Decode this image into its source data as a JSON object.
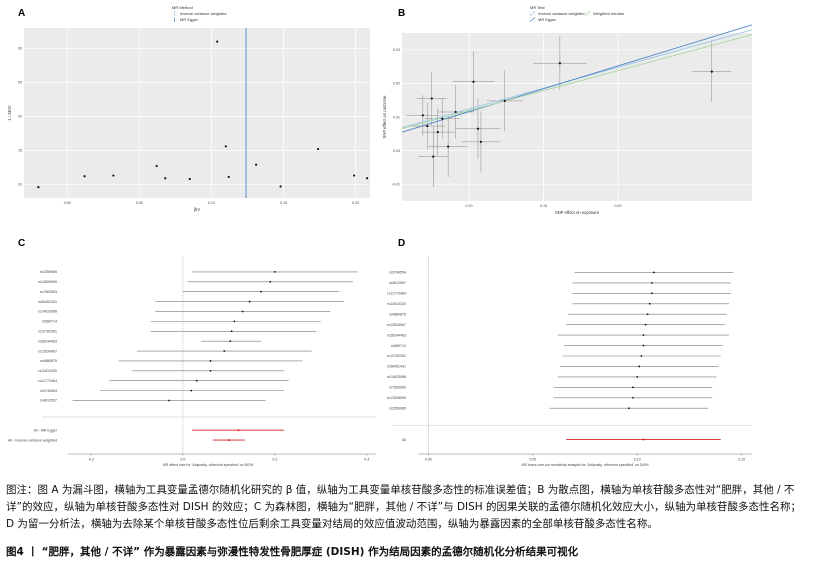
{
  "caption": {
    "note": "图注：图 A 为漏斗图，横轴为工具变量孟德尔随机化研究的 β 值，纵轴为工具变量单核苷酸多态性的标准误差值；B 为散点图，横轴为单核苷酸多态性对“肥胖，其他 / 不详”的效应，纵轴为单核苷酸多态性对 DISH 的效应；C 为森林图，横轴为“肥胖，其他 / 不详”与 DISH 的因果关联的孟德尔随机化效应大小，纵轴为单核苷酸多态性名称；D 为留一分析法，横轴为去除某个单核苷酸多态性位后剩余工具变量对结局的效应值波动范围，纵轴为暴露因素的全部单核苷酸多态性名称。",
    "title": "图4 丨 “肥胖，其他 / 不详” 作为暴露因素与弥漫性特发性骨肥厚症 (DISH) 作为结局因素的孟德尔随机化分析结果可视化"
  },
  "chart_data": [
    {
      "panel": "A",
      "type": "scatter",
      "legend_title": "MR Method",
      "legend_entries": [
        "Inverse variance weighted",
        "MR Egger"
      ],
      "legend_colors": [
        "#9fc8e8",
        "#4f86c6"
      ],
      "xlabel": "βIV",
      "ylabel": "1 / SEIV",
      "xlim": [
        -0.03,
        0.21
      ],
      "ylim": [
        8,
        33
      ],
      "x_ticks": [
        "0.00",
        "0.05",
        "0.10",
        "0.15",
        "0.20"
      ],
      "x_tick_values": [
        0.0,
        0.05,
        0.1,
        0.15,
        0.2
      ],
      "y_ticks": [
        "10",
        "15",
        "20",
        "25",
        "30"
      ],
      "y_tick_values": [
        10,
        15,
        20,
        25,
        30
      ],
      "vlines": [
        0.124,
        0.124
      ],
      "points": [
        {
          "x": -0.02,
          "y": 9.6
        },
        {
          "x": 0.012,
          "y": 11.2
        },
        {
          "x": 0.032,
          "y": 11.3
        },
        {
          "x": 0.062,
          "y": 12.7
        },
        {
          "x": 0.068,
          "y": 10.9
        },
        {
          "x": 0.085,
          "y": 10.8
        },
        {
          "x": 0.104,
          "y": 31.0
        },
        {
          "x": 0.11,
          "y": 15.6
        },
        {
          "x": 0.112,
          "y": 11.1
        },
        {
          "x": 0.131,
          "y": 12.9
        },
        {
          "x": 0.148,
          "y": 9.7
        },
        {
          "x": 0.174,
          "y": 15.2
        },
        {
          "x": 0.199,
          "y": 11.3
        },
        {
          "x": 0.208,
          "y": 10.9
        }
      ]
    },
    {
      "panel": "B",
      "type": "scatter",
      "legend_title": "MR Test",
      "legend_entries": [
        "Inverse variance weighted",
        "MR Egger",
        "Weighted median"
      ],
      "legend_colors": [
        "#9fc8e8",
        "#4f86c6",
        "#a8d5a2"
      ],
      "xlabel": "SNP effect on exposure",
      "ylabel": "SNP effect on outcome",
      "xlim": [
        0.055,
        0.29
      ],
      "ylim": [
        -0.015,
        0.035
      ],
      "x_ticks": [
        "0.10",
        "0.15",
        "0.20"
      ],
      "x_tick_values": [
        0.1,
        0.15,
        0.2
      ],
      "y_ticks": [
        "-0.01",
        "0.00",
        "0.01",
        "0.02",
        "0.03"
      ],
      "y_tick_values": [
        -0.01,
        0.0,
        0.01,
        0.02,
        0.03
      ],
      "lines": [
        {
          "name": "Inverse variance weighted",
          "intercept": 0.0,
          "slope": 0.124
        },
        {
          "name": "MR Egger",
          "intercept": -0.002,
          "slope": 0.136
        },
        {
          "name": "Weighted median",
          "intercept": 0.0,
          "slope": 0.119
        }
      ],
      "points": [
        {
          "x": 0.069,
          "y": 0.0105,
          "xerr": 0.011,
          "yerr": 0.006
        },
        {
          "x": 0.072,
          "y": 0.0073,
          "xerr": 0.012,
          "yerr": 0.007
        },
        {
          "x": 0.075,
          "y": 0.0155,
          "xerr": 0.01,
          "yerr": 0.008
        },
        {
          "x": 0.076,
          "y": -0.0018,
          "xerr": 0.01,
          "yerr": 0.009
        },
        {
          "x": 0.079,
          "y": 0.0055,
          "xerr": 0.011,
          "yerr": 0.007
        },
        {
          "x": 0.082,
          "y": 0.0095,
          "xerr": 0.012,
          "yerr": 0.006
        },
        {
          "x": 0.086,
          "y": 0.0012,
          "xerr": 0.013,
          "yerr": 0.009
        },
        {
          "x": 0.091,
          "y": 0.0115,
          "xerr": 0.012,
          "yerr": 0.008
        },
        {
          "x": 0.103,
          "y": 0.0205,
          "xerr": 0.014,
          "yerr": 0.009
        },
        {
          "x": 0.106,
          "y": 0.0065,
          "xerr": 0.015,
          "yerr": 0.009
        },
        {
          "x": 0.108,
          "y": 0.0026,
          "xerr": 0.013,
          "yerr": 0.009
        },
        {
          "x": 0.124,
          "y": 0.0148,
          "xerr": 0.012,
          "yerr": 0.009
        },
        {
          "x": 0.161,
          "y": 0.026,
          "xerr": 0.018,
          "yerr": 0.008
        },
        {
          "x": 0.263,
          "y": 0.0235,
          "xerr": 0.013,
          "yerr": 0.009
        }
      ]
    },
    {
      "panel": "C",
      "type": "forest",
      "xlabel": "MR effect size for 'Adiposity, other/not specified' on DISH",
      "x_ticks": [
        "-0.2",
        "0.0",
        "0.2",
        "0.4"
      ],
      "x_tick_values": [
        -0.2,
        0.0,
        0.2,
        0.4
      ],
      "xlim": [
        -0.25,
        0.42
      ],
      "rows": [
        {
          "label": "rs3359985",
          "est": 0.2,
          "lo": 0.02,
          "hi": 0.38
        },
        {
          "label": "rs12808999",
          "est": 0.19,
          "lo": 0.01,
          "hi": 0.37
        },
        {
          "label": "rs7563083",
          "est": 0.17,
          "lo": 0.0,
          "hi": 0.34
        },
        {
          "label": "rs56451431",
          "est": 0.145,
          "lo": -0.06,
          "hi": 0.35
        },
        {
          "label": "rs14633088",
          "est": 0.13,
          "lo": -0.06,
          "hi": 0.32
        },
        {
          "label": "rs589714",
          "est": 0.112,
          "lo": -0.07,
          "hi": 0.3
        },
        {
          "label": "rs12782281",
          "est": 0.106,
          "lo": -0.07,
          "hi": 0.29
        },
        {
          "label": "rs28244463",
          "est": 0.103,
          "lo": 0.04,
          "hi": 0.17
        },
        {
          "label": "rs13534967",
          "est": 0.09,
          "lo": -0.1,
          "hi": 0.28
        },
        {
          "label": "rs4880875",
          "est": 0.06,
          "lo": -0.14,
          "hi": 0.26
        },
        {
          "label": "rs11810330",
          "est": 0.06,
          "lo": -0.11,
          "hi": 0.22
        },
        {
          "label": "rs11773464",
          "est": 0.03,
          "lo": -0.16,
          "hi": 0.23
        },
        {
          "label": "rs3746554",
          "est": 0.018,
          "lo": -0.18,
          "hi": 0.22
        },
        {
          "label": "rs4612957",
          "est": -0.03,
          "lo": -0.24,
          "hi": 0.18
        }
      ],
      "summary": [
        {
          "label": "All - MR Egger",
          "est": 0.121,
          "lo": 0.02,
          "hi": 0.22,
          "color": "#d62020"
        },
        {
          "label": "All - Inverse variance weighted",
          "est": 0.1,
          "lo": 0.065,
          "hi": 0.135,
          "color": "#d62020"
        }
      ]
    },
    {
      "panel": "D",
      "type": "forest",
      "xlabel": "MR leave-one-out sensitivity analysis for 'Adiposity, other/not specified' on DISH",
      "x_ticks": [
        "0.00",
        "0.05",
        "0.10",
        "0.15"
      ],
      "x_tick_values": [
        0.0,
        0.05,
        0.1,
        0.15
      ],
      "xlim": [
        -0.005,
        0.155
      ],
      "rows": [
        {
          "label": "rs3746554",
          "est": 0.108,
          "lo": 0.07,
          "hi": 0.146
        },
        {
          "label": "rs4612957",
          "est": 0.107,
          "lo": 0.069,
          "hi": 0.145
        },
        {
          "label": "rs11773464",
          "est": 0.107,
          "lo": 0.069,
          "hi": 0.145
        },
        {
          "label": "rs11810330",
          "est": 0.106,
          "lo": 0.069,
          "hi": 0.144
        },
        {
          "label": "rs4880875",
          "est": 0.105,
          "lo": 0.067,
          "hi": 0.143
        },
        {
          "label": "rs13534967",
          "est": 0.104,
          "lo": 0.066,
          "hi": 0.142
        },
        {
          "label": "rs28244463",
          "est": 0.103,
          "lo": 0.062,
          "hi": 0.144
        },
        {
          "label": "rs589714",
          "est": 0.103,
          "lo": 0.065,
          "hi": 0.141
        },
        {
          "label": "rs12782281",
          "est": 0.102,
          "lo": 0.064,
          "hi": 0.14
        },
        {
          "label": "rs56451431",
          "est": 0.101,
          "lo": 0.063,
          "hi": 0.139
        },
        {
          "label": "rs14633088",
          "est": 0.1,
          "lo": 0.062,
          "hi": 0.138
        },
        {
          "label": "rs7563083",
          "est": 0.098,
          "lo": 0.06,
          "hi": 0.136
        },
        {
          "label": "rs12808999",
          "est": 0.098,
          "lo": 0.06,
          "hi": 0.136
        },
        {
          "label": "rs3359985",
          "est": 0.096,
          "lo": 0.058,
          "hi": 0.134
        }
      ],
      "summary": [
        {
          "label": "All",
          "est": 0.103,
          "lo": 0.066,
          "hi": 0.14,
          "color": "#d62020"
        }
      ]
    }
  ]
}
